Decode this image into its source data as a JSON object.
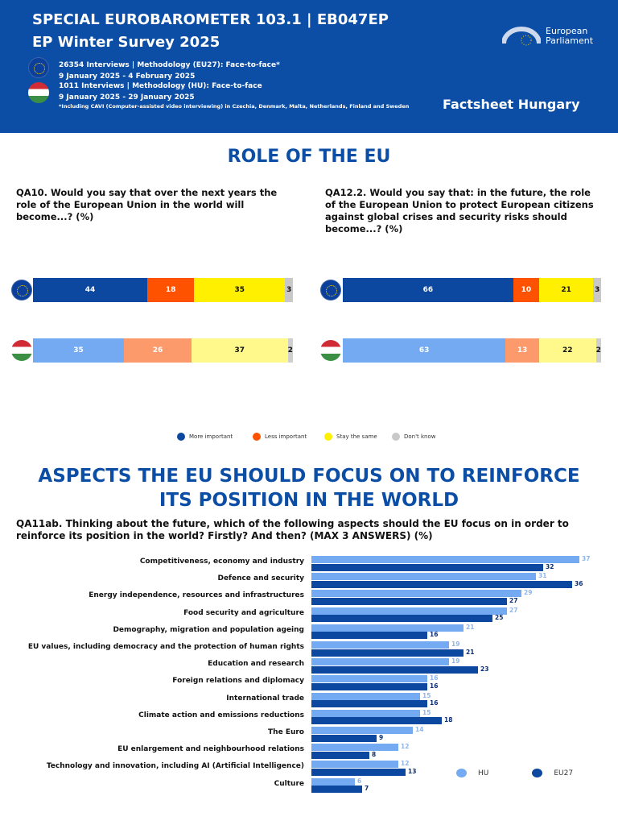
{
  "header": {
    "title1": "SPECIAL EUROBAROMETER 103.1 | EB047EP",
    "title2": "EP Winter Survey 2025",
    "eu_line1": "26354 Interviews | Methodology (EU27): Face-to-face*",
    "eu_line2": "9 January 2025 - 4 February 2025",
    "hu_line1": "1011 Interviews | Methodology (HU): Face-to-face",
    "hu_line2": "9 January 2025 - 29 January 2025",
    "note": "*Including CAVI (Computer-assisted video interviewing) in Czechia, Denmark, Malta, Netherlands, Finland and Sweden",
    "factsheet": "Factsheet Hungary",
    "logo_line1": "European",
    "logo_line2": "Parliament"
  },
  "section1": {
    "title": "ROLE OF THE EU",
    "q1": "QA10. Would you say that over the next years the role of the European Union in the world will become...? (%)",
    "q2": "QA12.2. Would you say that: in the future, the role of the European Union to protect European citizens against global crises and security risks should become...? (%)"
  },
  "section2": {
    "title": "ASPECTS THE EU SHOULD FOCUS ON TO REINFORCE ITS POSITION IN THE WORLD",
    "q": "QA11ab. Thinking about the future, which of the following aspects should the EU focus on in order to reinforce its position in the world? Firstly? And then? (MAX 3 ANSWERS) (%)"
  },
  "chart_data": [
    {
      "type": "bar",
      "stacked": true,
      "orientation": "horizontal",
      "question": "QA10",
      "categories": [
        "EU27",
        "HU"
      ],
      "legend": [
        "More important",
        "Less important",
        "Stay the same",
        "Don't know"
      ],
      "colors": {
        "EU27": [
          "#0c47a0",
          "#ff5200",
          "#fff000",
          "#c8c8c8"
        ],
        "HU": [
          "#74aaf2",
          "#fd9a6c",
          "#fff98c",
          "#cfcfcf"
        ]
      },
      "series": [
        {
          "name": "More important",
          "values": [
            44,
            35
          ]
        },
        {
          "name": "Less important",
          "values": [
            18,
            26
          ]
        },
        {
          "name": "Stay the same",
          "values": [
            35,
            37
          ]
        },
        {
          "name": "Don't know",
          "values": [
            3,
            2
          ]
        }
      ]
    },
    {
      "type": "bar",
      "stacked": true,
      "orientation": "horizontal",
      "question": "QA12.2",
      "categories": [
        "EU27",
        "HU"
      ],
      "series": [
        {
          "name": "More important",
          "values": [
            66,
            63
          ]
        },
        {
          "name": "Less important",
          "values": [
            10,
            13
          ]
        },
        {
          "name": "Stay the same",
          "values": [
            21,
            22
          ]
        },
        {
          "name": "Don't know",
          "values": [
            3,
            2
          ]
        }
      ]
    },
    {
      "type": "bar",
      "orientation": "horizontal",
      "question": "QA11ab",
      "categories": [
        "Competitiveness, economy and industry",
        "Defence and security",
        "Energy independence, resources and infrastructures",
        "Food security and agriculture",
        "Demography, migration and population ageing",
        "EU values, including democracy and the protection of human rights",
        "Education and research",
        "Foreign relations and diplomacy",
        "International trade",
        "Climate action and emissions reductions",
        "The Euro",
        "EU enlargement and neighbourhood relations",
        "Technology and innovation, including AI (Artificial Intelligence)",
        "Culture"
      ],
      "series": [
        {
          "name": "HU",
          "color": "#74aaf2",
          "values": [
            37,
            31,
            29,
            27,
            21,
            19,
            19,
            16,
            15,
            15,
            14,
            12,
            12,
            6
          ]
        },
        {
          "name": "EU27",
          "color": "#0c47a0",
          "values": [
            32,
            36,
            27,
            25,
            16,
            21,
            23,
            16,
            16,
            18,
            9,
            8,
            13,
            7
          ]
        }
      ],
      "legend_placement": "bottom-right"
    }
  ]
}
